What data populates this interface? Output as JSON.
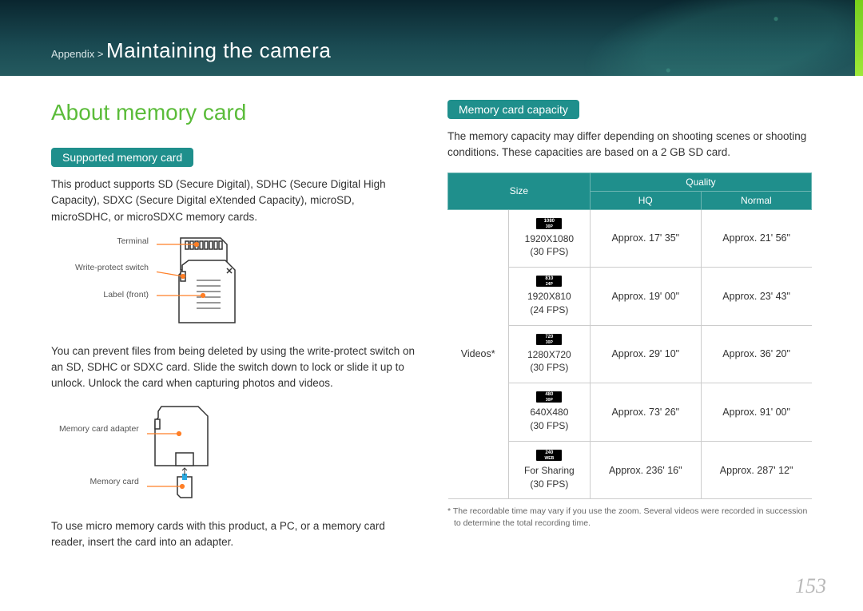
{
  "header": {
    "breadcrumb_prefix": "Appendix > ",
    "breadcrumb_main": "Maintaining the camera"
  },
  "left": {
    "title": "About memory card",
    "pill1": "Supported memory card",
    "para1": "This product supports SD (Secure Digital), SDHC (Secure Digital High Capacity), SDXC (Secure Digital eXtended Capacity), microSD, microSDHC, or microSDXC memory cards.",
    "diag1": {
      "label_terminal": "Terminal",
      "label_wps": "Write-protect switch",
      "label_front": "Label (front)"
    },
    "para2": "You can prevent files from being deleted by using the write-protect switch on an SD, SDHC or SDXC card. Slide the switch down to lock or slide it up to unlock. Unlock the card when capturing photos and videos.",
    "diag2": {
      "label_adapter": "Memory card adapter",
      "label_card": "Memory card"
    },
    "para3": "To use micro memory cards with this product, a PC, or a memory card reader, insert the card into an adapter."
  },
  "right": {
    "pill": "Memory card capacity",
    "intro": "The memory capacity may differ depending on shooting scenes or shooting conditions. These capacities are based on a 2 GB SD card.",
    "table": {
      "head_size": "Size",
      "head_quality": "Quality",
      "head_hq": "HQ",
      "head_normal": "Normal",
      "rowgroup": "Videos*",
      "rows": [
        {
          "icon_top": "1080",
          "icon_bot": "30P",
          "res": "1920X1080",
          "fps": "(30 FPS)",
          "hq": "Approx. 17' 35\"",
          "normal": "Approx. 21' 56\""
        },
        {
          "icon_top": "810",
          "icon_bot": "24P",
          "res": "1920X810",
          "fps": "(24 FPS)",
          "hq": "Approx. 19' 00\"",
          "normal": "Approx. 23' 43\""
        },
        {
          "icon_top": "720",
          "icon_bot": "30P",
          "res": "1280X720",
          "fps": "(30 FPS)",
          "hq": "Approx. 29' 10\"",
          "normal": "Approx. 36' 20\""
        },
        {
          "icon_top": "480",
          "icon_bot": "30P",
          "res": "640X480",
          "fps": "(30 FPS)",
          "hq": "Approx. 73' 26\"",
          "normal": "Approx. 91' 00\""
        },
        {
          "icon_top": "240",
          "icon_bot": "WEB",
          "res": "For Sharing",
          "fps": "(30 FPS)",
          "hq": "Approx. 236' 16\"",
          "normal": "Approx. 287' 12\""
        }
      ]
    },
    "footnote": "* The recordable time may vary if you use the zoom. Several videos were recorded in succession to determine the total recording time."
  },
  "page_number": "153",
  "colors": {
    "accent_green": "#5bbc3a",
    "teal": "#1f8f8c",
    "header_bg": "#1a4a52",
    "leader": "#ff7f27"
  }
}
